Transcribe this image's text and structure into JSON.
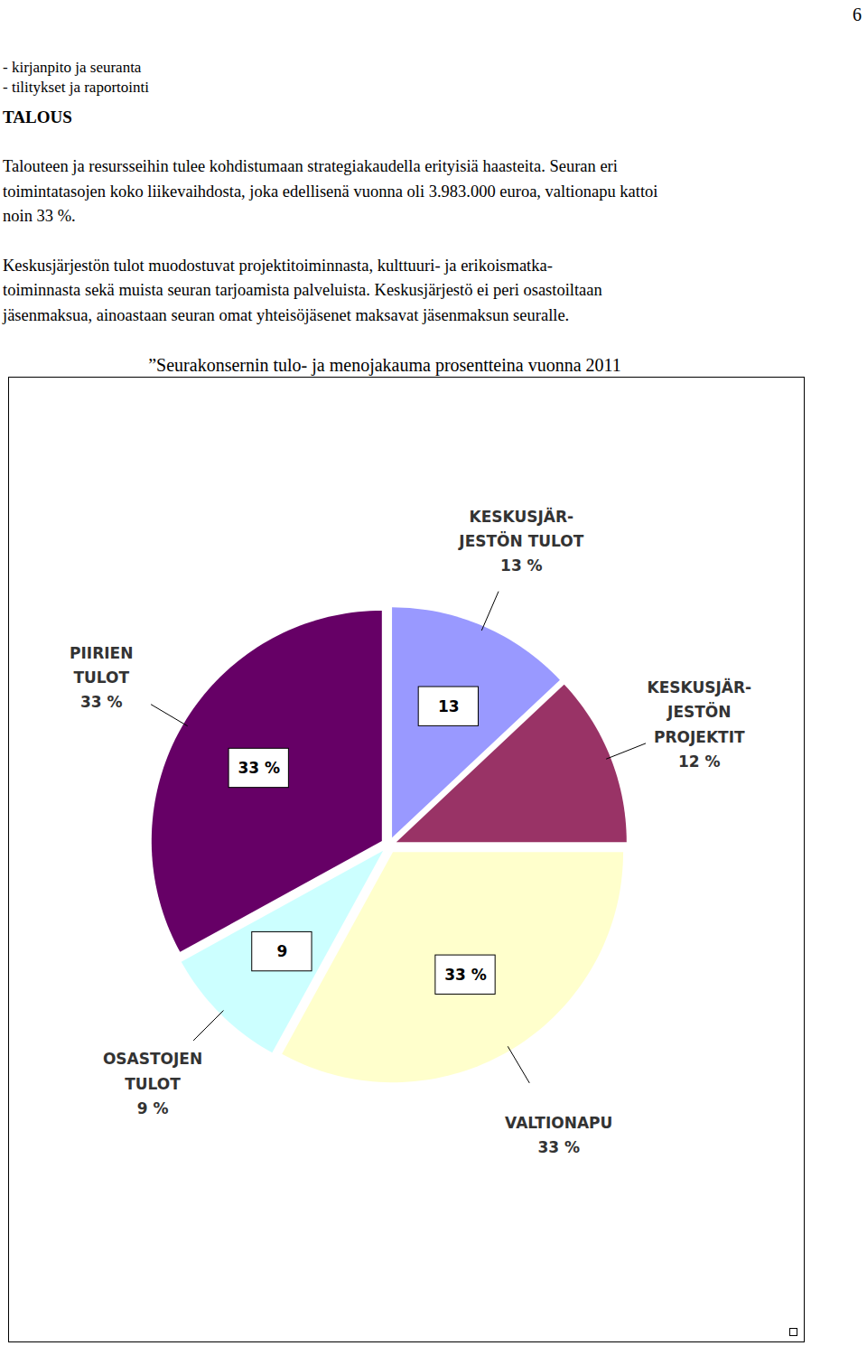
{
  "document": {
    "page_number": "6",
    "list": [
      "- kirjanpito ja seuranta",
      "- tilitykset ja raportointi"
    ],
    "heading": "TALOUS",
    "paragraphs": [
      [
        "Talouteen ja resursseihin tulee kohdistumaan strategiakaudella erityisiä haasteita. Seuran eri",
        "toimintatasojen koko liikevaihdosta, joka edellisenä vuonna oli 3.983.000 euroa, valtionapu kattoi",
        "noin 33 %."
      ],
      [
        "Keskusjärjestön tulot muodostuvat projektitoiminnasta, kulttuuri- ja erikoismatka-",
        "toiminnasta sekä muista seuran tarjoamista palveluista. Keskusjärjestö ei peri osastoiltaan",
        "jäsenmaksua, ainoastaan seuran omat yhteisöjäsenet maksavat jäsenmaksun seuralle."
      ]
    ]
  },
  "chart_data": {
    "type": "pie",
    "title": "”Seurakonsernin tulo- ja menojakauma prosentteina vuonna 2011",
    "categories": [
      "KESKUSJÄR-\nJESTÖN TULOT",
      "KESKUSJÄR-\nJESTÖN\nPROJEKTIT",
      "VALTIONAPU",
      "OSASTOJEN\nTULOT",
      "PIIRIEN\nTULOT"
    ],
    "values": [
      13,
      12,
      33,
      9,
      33
    ],
    "value_labels": [
      "13 %",
      "12 %",
      "33 %",
      "9 %",
      "33 %"
    ],
    "inner_labels": [
      "13",
      null,
      "33 %",
      "9",
      "33 %"
    ],
    "colors": [
      "#9999ff",
      "#993366",
      "#ffffcc",
      "#ccffff",
      "#660066"
    ],
    "data_labels": true
  }
}
